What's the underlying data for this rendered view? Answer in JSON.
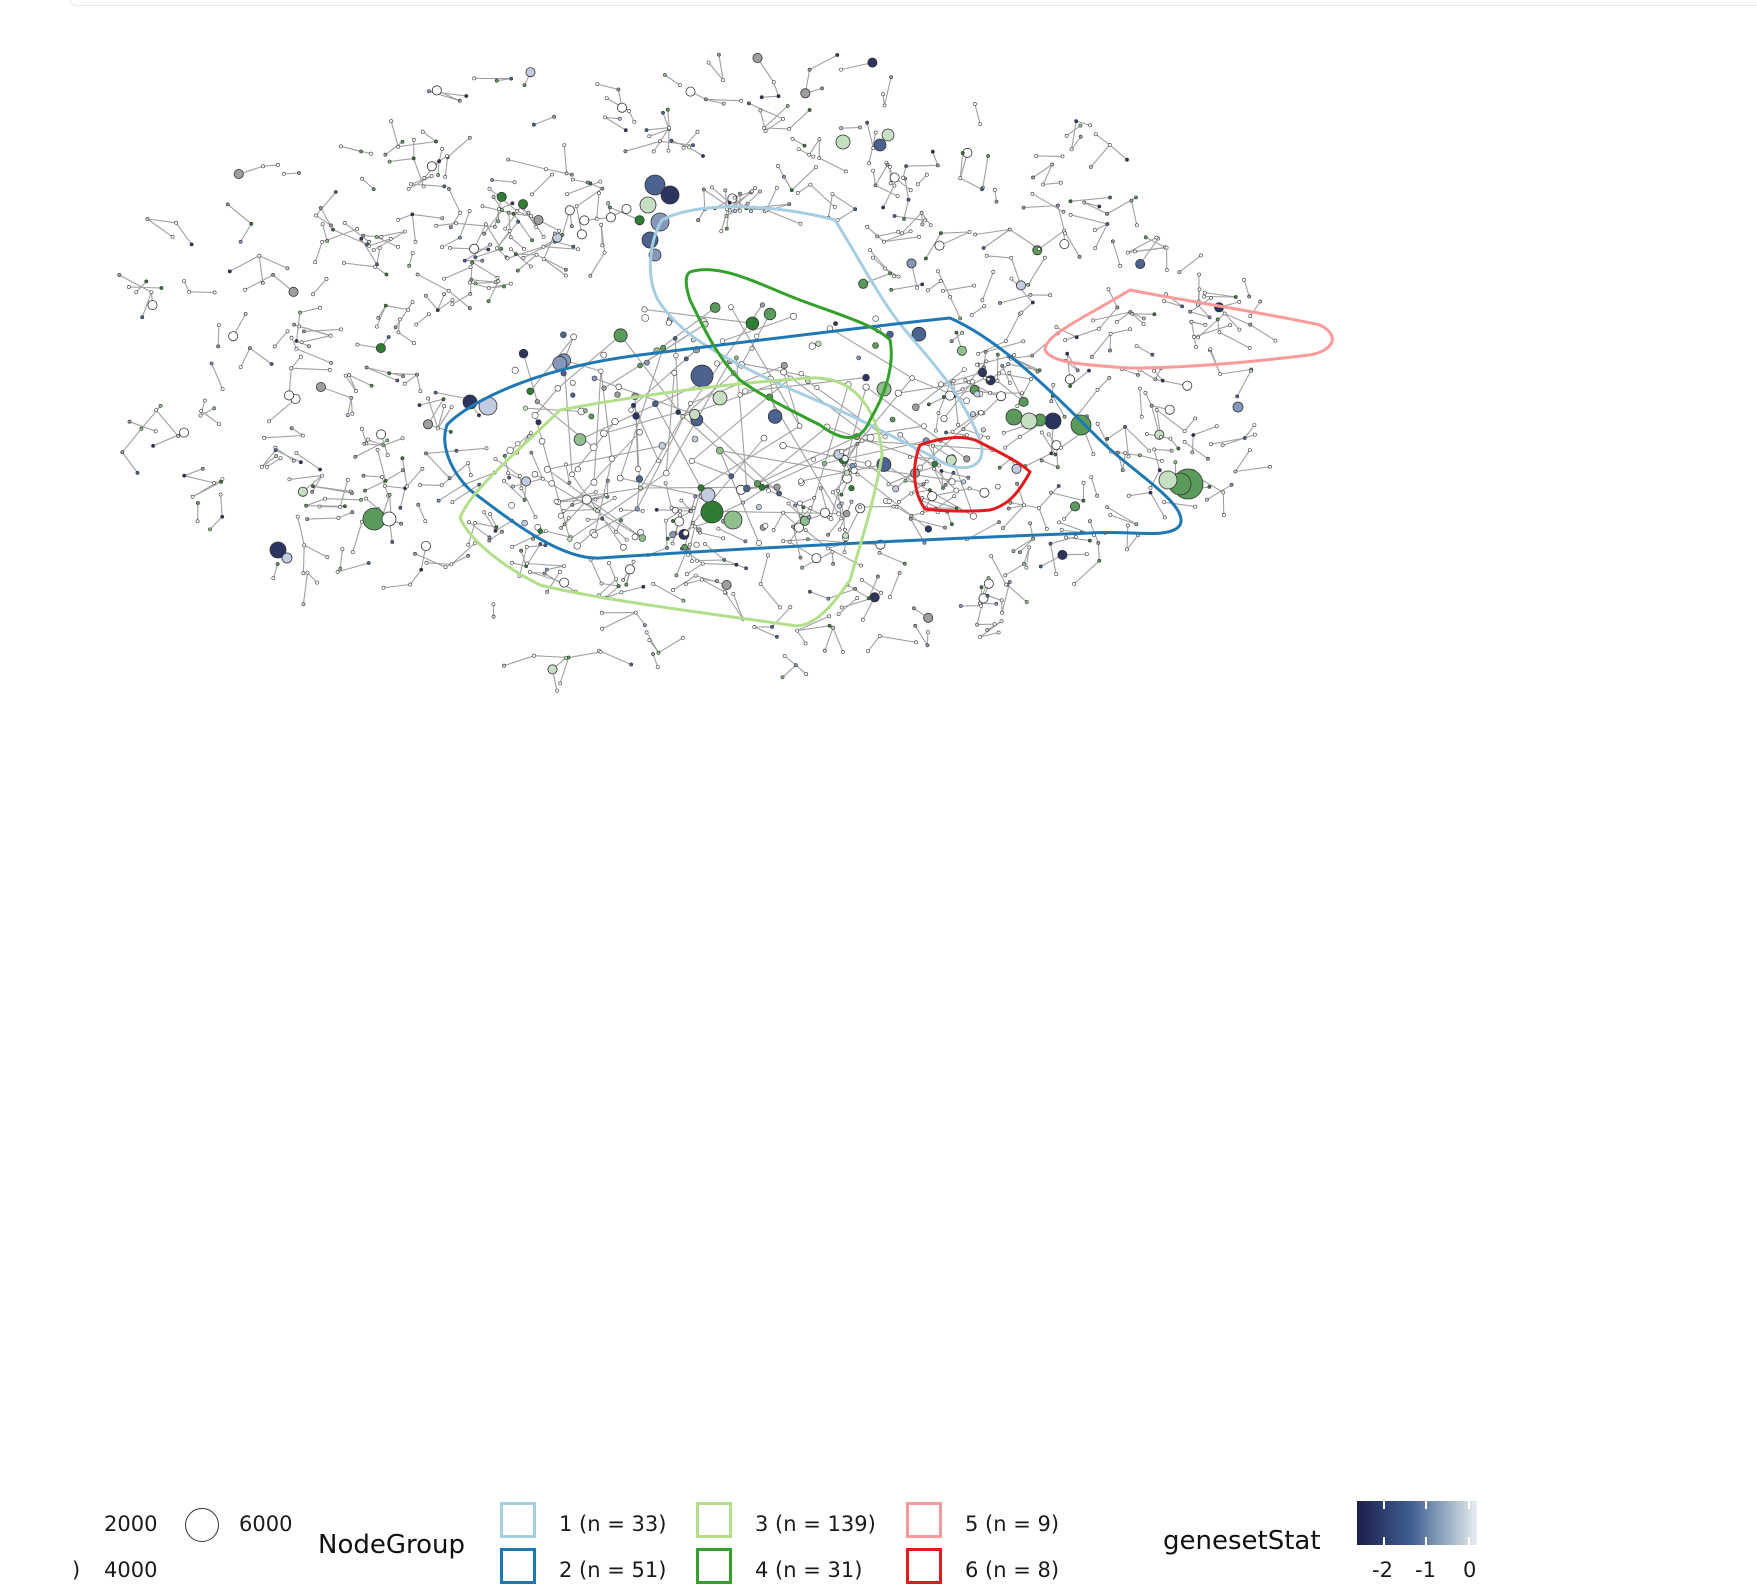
{
  "legend": {
    "size": {
      "values": [
        "2000",
        "4000",
        "6000"
      ],
      "partial_label": ")"
    },
    "nodegroup": {
      "title": "NodeGroup",
      "groups": [
        {
          "label": "1 (n = 33)",
          "color": "#a6cee3"
        },
        {
          "label": "2 (n = 51)",
          "color": "#1f78b4"
        },
        {
          "label": "3 (n = 139)",
          "color": "#b2df8a"
        },
        {
          "label": "4 (n = 31)",
          "color": "#33a02c"
        },
        {
          "label": "5 (n = 9)",
          "color": "#fb9a99"
        },
        {
          "label": "6 (n = 8)",
          "color": "#e31a1c"
        }
      ]
    },
    "colorbar": {
      "title": "genesetStat",
      "ticks": [
        "-2",
        "-1",
        "0"
      ],
      "low_color": "#1c1f4a",
      "mid_color": "#3f5f92",
      "high_color": "#e6eeee"
    }
  },
  "network": {
    "edge_color": "#a0a0a0",
    "node_stroke": "#333333",
    "green_palette": [
      "#2e7d32",
      "#5a9b5c",
      "#8fbf8c",
      "#c6dfc2"
    ],
    "blue_palette": [
      "#2b3560",
      "#4b628f",
      "#8597bb",
      "#c1cce0"
    ]
  }
}
